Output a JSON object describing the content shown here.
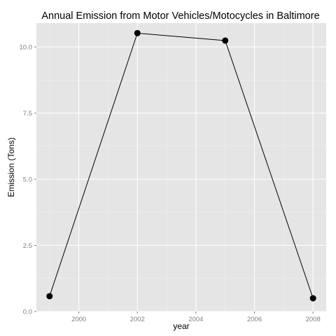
{
  "chart_data": {
    "type": "line",
    "title": "Annual Emission from Motor Vehicles/Motocycles in Baltimore",
    "xlabel": "year",
    "ylabel": "Emission (Tons)",
    "x_ticks": [
      "2000",
      "2002",
      "2004",
      "2006",
      "2008"
    ],
    "y_ticks": [
      "0.0",
      "2.5",
      "5.0",
      "7.5",
      "10.0"
    ],
    "xlim": [
      1998.55,
      2008.45
    ],
    "ylim": [
      0,
      10.9
    ],
    "grid": true,
    "series": [
      {
        "x": [
          1999,
          2002,
          2005,
          2008
        ],
        "values": [
          0.58,
          10.52,
          10.24,
          0.5
        ]
      }
    ],
    "colors": {
      "panel_background": "#e5e5e5",
      "grid_major": "#ffffff",
      "grid_minor": "#f2f2f2",
      "line": "#000000",
      "point": "#000000",
      "tick_label": "#7f7f7f"
    }
  }
}
